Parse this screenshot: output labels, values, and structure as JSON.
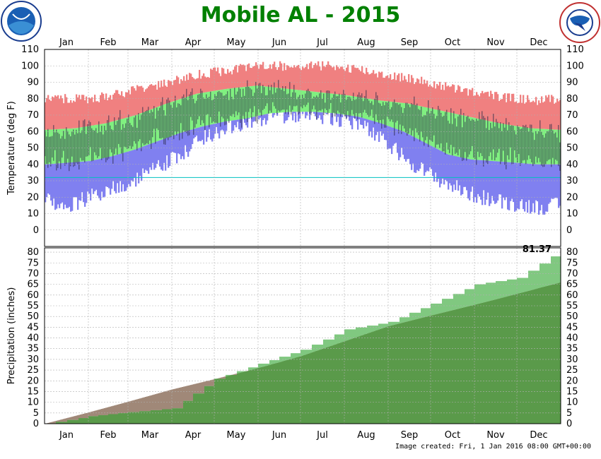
{
  "title": "Mobile AL - 2015",
  "image_created": "Image created: Fri, 1 Jan 2016 08:00 GMT+00:00",
  "logos": {
    "left": "NOAA",
    "right": "NATIONAL WEATHER SERVICE"
  },
  "chart_data": [
    {
      "type": "bar",
      "name_role": "temperature",
      "ylabel": "Temperature (deg F)",
      "ylim": [
        -10,
        110
      ],
      "yticks": [
        0,
        10,
        20,
        30,
        40,
        50,
        60,
        70,
        80,
        90,
        100,
        110
      ],
      "months": [
        "Jan",
        "Feb",
        "Mar",
        "Apr",
        "May",
        "Jun",
        "Jul",
        "Aug",
        "Sep",
        "Oct",
        "Nov",
        "Dec"
      ],
      "freezing_line": 32,
      "normal_high": [
        61,
        62,
        65,
        70,
        77,
        83,
        86,
        88,
        86,
        84,
        82,
        79,
        77,
        73,
        69,
        65,
        62,
        61
      ],
      "normal_low": [
        40,
        41,
        42,
        45,
        49,
        54,
        59,
        63,
        66,
        68,
        71,
        72,
        72,
        71,
        69,
        65,
        60,
        53,
        46,
        43,
        42,
        41,
        40,
        40
      ],
      "record_high": [
        80,
        80,
        80,
        82,
        85,
        88,
        92,
        95,
        97,
        99,
        100,
        100,
        100,
        100,
        98,
        95,
        93,
        90,
        87,
        84,
        82,
        80,
        79,
        80
      ],
      "record_low": [
        18,
        15,
        20,
        25,
        30,
        38,
        45,
        55,
        62,
        66,
        68,
        70,
        70,
        68,
        65,
        55,
        45,
        35,
        28,
        22,
        18,
        16,
        14,
        15
      ],
      "colors": {
        "record": "#f08080",
        "normal": "#80f080",
        "below": "#8080f0",
        "freeze": "#00c0c0"
      }
    },
    {
      "type": "area",
      "name_role": "precipitation",
      "ylabel": "Precipitation (inches)",
      "ylim": [
        0,
        82
      ],
      "yticks": [
        0,
        5,
        10,
        15,
        20,
        25,
        30,
        35,
        40,
        45,
        50,
        55,
        60,
        65,
        70,
        75,
        80
      ],
      "months": [
        "Jan",
        "Feb",
        "Mar",
        "Apr",
        "May",
        "Jun",
        "Jul",
        "Aug",
        "Sep",
        "Oct",
        "Nov",
        "Dec"
      ],
      "total_label": "81.37",
      "normal_cumulative": [
        0,
        5.3,
        10.3,
        16.0,
        20.8,
        26.0,
        31.5,
        38.5,
        45.5,
        50.5,
        55.5,
        60.6,
        66.0
      ],
      "actual_cumulative": [
        0,
        3.5,
        5.4,
        7.2,
        21.0,
        28.0,
        34.5,
        44.0,
        47.5,
        56.0,
        65.0,
        68.0,
        81.37
      ],
      "colors": {
        "normal": "#5a9a4a",
        "above": "#80c880",
        "below": "#a08878"
      }
    }
  ]
}
